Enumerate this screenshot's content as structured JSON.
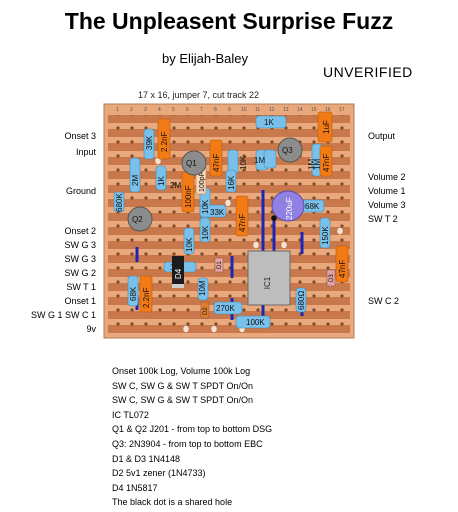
{
  "title": "The Unpleasent Surprise Fuzz",
  "author": "by Elijah-Baley",
  "status": "UNVERIFIED",
  "board_info": "17 x 16, jumper 7, cut track 22",
  "left_labels": [
    "Onset 3",
    "Input",
    "Ground",
    "Onset 2",
    "SW G 3",
    "SW G 3",
    "SW G 2",
    "SW T 1",
    "Onset 1",
    "SW G 1  SW C 1",
    "9v"
  ],
  "right_labels": [
    "Output",
    "Volume 2",
    "Volume 1",
    "Volume 3",
    "SW T 2",
    "SW C 2"
  ],
  "components": {
    "resistors": [
      "39K",
      "2M",
      "1K",
      "680K",
      "10K",
      "1M",
      "16K",
      "33K",
      "10K",
      "1K",
      "1M",
      "68K",
      "1M",
      "150K",
      "10K",
      "68K",
      "10K",
      "100K",
      "270K",
      "68K"
    ],
    "capacitors": [
      "2.2nF",
      "47nF",
      "100nF",
      "100nF",
      "100pF",
      "47nF",
      "1uF",
      "47nF",
      "47nF",
      "2.2nF",
      "220uF"
    ],
    "transistors": [
      "Q1",
      "Q2",
      "Q3"
    ],
    "diodes": [
      "D1",
      "D2",
      "D3",
      "D4"
    ],
    "ic": "IC1"
  },
  "notes": [
    "Onset 100k Log, Volume 100k Log",
    "SW C, SW G & SW T SPDT On/On",
    "SW C, SW G & SW T SPDT On/On",
    "IC TL072",
    "Q1 & Q2 J201 - from top to bottom DSG",
    "Q3: 2N3904 - from top to bottom EBC",
    "D1 & D3 1N4148",
    "D2 5v1 zener (1N4733)",
    "D4 1N5817",
    "The black dot is a shared hole"
  ],
  "colors": {
    "board": "#e8a577",
    "strip": "#c97a4e",
    "resistor": "#7ac0e8",
    "capacitor": "#f07a18",
    "electrolytic": "#8f7fe0",
    "transistor": "#8a8a8a",
    "jumper": "#1a23b5",
    "ic": "#b9b9b9"
  }
}
